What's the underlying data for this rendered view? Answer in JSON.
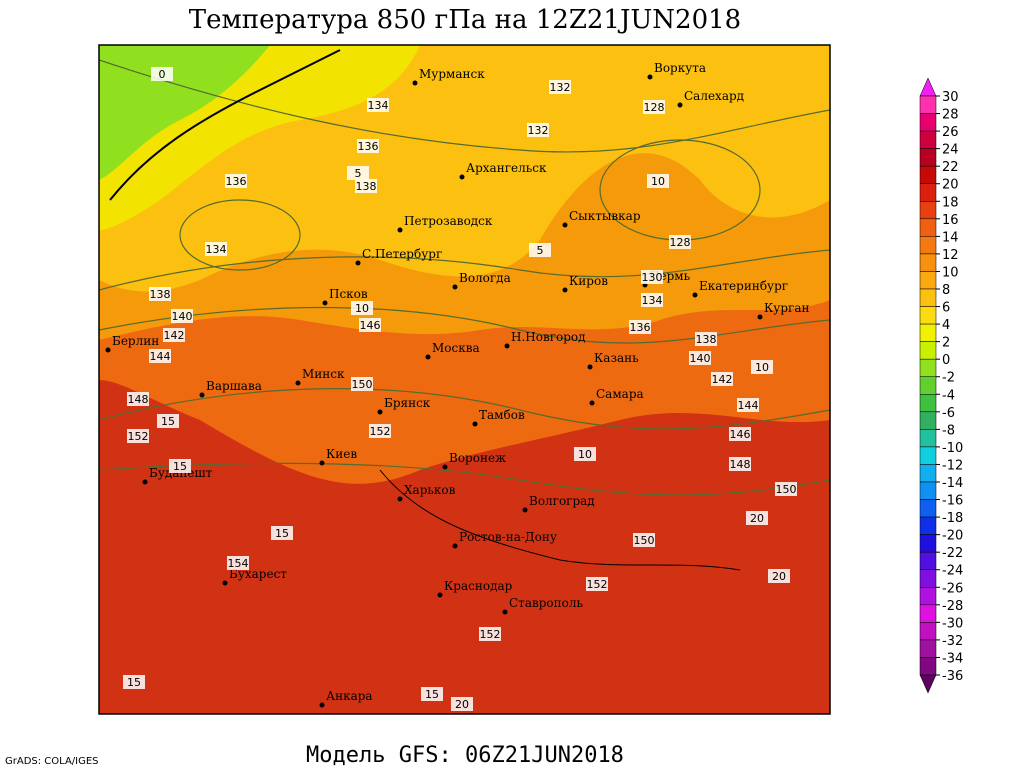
{
  "title": "Температура 850 гПа на 12Z21JUN2018",
  "model": "Модель GFS: 06Z21JUN2018",
  "credit": "GrADS: COLA/IGES",
  "cities": [
    "Мурманск",
    "Воркута",
    "Салехард",
    "Архангельск",
    "Сыктывкар",
    "Петрозаводск",
    "С.Петербург",
    "Вологда",
    "Киров",
    "Пермь",
    "Екатеринбург",
    "Курган",
    "Псков",
    "Берлин",
    "Москва",
    "Н.Новгород",
    "Казань",
    "Минск",
    "Варшава",
    "Самара",
    "Брянск",
    "Тамбов",
    "Киев",
    "Воронеж",
    "Будапешт",
    "Харьков",
    "Волгоград",
    "Ростов-на-Дону",
    "Бухарест",
    "Краснодар",
    "Ставрополь",
    "Анкара"
  ],
  "contour_labels": [
    0,
    136,
    134,
    136,
    138,
    134,
    138,
    140,
    142,
    144,
    146,
    148,
    150,
    152,
    154,
    132,
    132,
    128,
    128,
    130,
    134,
    136,
    138,
    140,
    142,
    144,
    146,
    148,
    150,
    152,
    152,
    150,
    152,
    5,
    10,
    10,
    10,
    15,
    15,
    15,
    20,
    20,
    15,
    15,
    20,
    10,
    5
  ],
  "colorbar": {
    "levels": [
      30,
      28,
      26,
      24,
      22,
      20,
      18,
      16,
      14,
      12,
      10,
      8,
      6,
      4,
      2,
      0,
      -2,
      -4,
      -6,
      -8,
      -10,
      -12,
      -14,
      -16,
      -18,
      -20,
      -22,
      -24,
      -26,
      -28,
      -30,
      -32,
      -34,
      -36
    ],
    "colors": [
      "#f020f0",
      "#ff30b0",
      "#e80070",
      "#d00040",
      "#b80020",
      "#c80808",
      "#dc2010",
      "#e84010",
      "#f06010",
      "#f47a10",
      "#f89010",
      "#fca810",
      "#fcc010",
      "#fcdc10",
      "#f0f000",
      "#c8f000",
      "#90e020",
      "#60d030",
      "#40c040",
      "#30b060",
      "#20c0a0",
      "#10d0e0",
      "#10b0f0",
      "#1090f0",
      "#1060f0",
      "#1030e8",
      "#2010e0",
      "#5010e0",
      "#8010e0",
      "#b010e0",
      "#e010e0",
      "#c010c0",
      "#a010a0",
      "#800880",
      "#600060"
    ]
  }
}
